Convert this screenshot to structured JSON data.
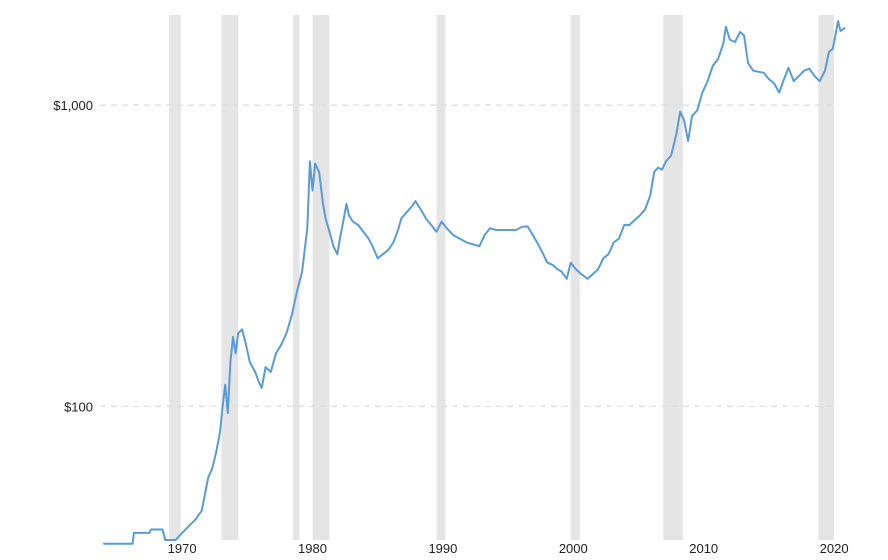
{
  "chart_data": {
    "type": "line",
    "y_scale": "log",
    "ylim": [
      36,
      2100
    ],
    "xlim": [
      1963.7,
      2020.3
    ],
    "grid": "horizontal dashed",
    "legend": "none",
    "colors": {
      "line": "#5b9bd5",
      "recession": "#e5e5e5",
      "grid": "#dddddd"
    },
    "x_ticks": [
      {
        "value": 1970,
        "label": "1970"
      },
      {
        "value": 1980,
        "label": "1980"
      },
      {
        "value": 1990,
        "label": "1990"
      },
      {
        "value": 2000,
        "label": "2000"
      },
      {
        "value": 2010,
        "label": "2010"
      },
      {
        "value": 2020,
        "label": "2020"
      }
    ],
    "y_ticks": [
      {
        "value": 100,
        "label": "$100"
      },
      {
        "value": 1000,
        "label": "$1,000"
      }
    ],
    "recessions": [
      [
        1969.0,
        1969.9
      ],
      [
        1973.0,
        1974.3
      ],
      [
        1978.5,
        1979.0
      ],
      [
        1980.0,
        1981.3
      ],
      [
        1989.5,
        1990.2
      ],
      [
        1999.8,
        2000.5
      ],
      [
        2006.9,
        2008.4
      ],
      [
        2018.8,
        2020.0
      ]
    ],
    "series": [
      {
        "values": [
          [
            1964.0,
            35
          ],
          [
            1966.0,
            35
          ],
          [
            1966.2,
            35
          ],
          [
            1966.3,
            38
          ],
          [
            1967.5,
            38
          ],
          [
            1967.6,
            39
          ],
          [
            1968.5,
            39
          ],
          [
            1968.7,
            36
          ],
          [
            1969.5,
            36
          ],
          [
            1970.0,
            38
          ],
          [
            1970.5,
            40
          ],
          [
            1971.0,
            42
          ],
          [
            1971.5,
            45
          ],
          [
            1972.0,
            58
          ],
          [
            1972.3,
            62
          ],
          [
            1972.6,
            70
          ],
          [
            1972.9,
            82
          ],
          [
            1973.1,
            100
          ],
          [
            1973.3,
            118
          ],
          [
            1973.5,
            95
          ],
          [
            1973.7,
            140
          ],
          [
            1973.9,
            170
          ],
          [
            1974.1,
            150
          ],
          [
            1974.3,
            175
          ],
          [
            1974.6,
            180
          ],
          [
            1974.9,
            160
          ],
          [
            1975.2,
            140
          ],
          [
            1975.6,
            130
          ],
          [
            1975.9,
            120
          ],
          [
            1976.1,
            115
          ],
          [
            1976.4,
            135
          ],
          [
            1976.8,
            130
          ],
          [
            1977.2,
            150
          ],
          [
            1977.6,
            160
          ],
          [
            1978.0,
            175
          ],
          [
            1978.4,
            200
          ],
          [
            1978.8,
            240
          ],
          [
            1979.2,
            280
          ],
          [
            1979.6,
            390
          ],
          [
            1979.8,
            650
          ],
          [
            1980.0,
            520
          ],
          [
            1980.2,
            640
          ],
          [
            1980.5,
            600
          ],
          [
            1980.8,
            470
          ],
          [
            1981.0,
            420
          ],
          [
            1981.3,
            380
          ],
          [
            1981.6,
            340
          ],
          [
            1981.9,
            320
          ],
          [
            1982.1,
            360
          ],
          [
            1982.4,
            420
          ],
          [
            1982.6,
            470
          ],
          [
            1982.8,
            430
          ],
          [
            1983.1,
            410
          ],
          [
            1983.5,
            400
          ],
          [
            1983.9,
            380
          ],
          [
            1984.3,
            360
          ],
          [
            1984.6,
            340
          ],
          [
            1985.0,
            310
          ],
          [
            1985.4,
            320
          ],
          [
            1985.8,
            330
          ],
          [
            1986.2,
            350
          ],
          [
            1986.6,
            390
          ],
          [
            1986.8,
            420
          ],
          [
            1987.2,
            440
          ],
          [
            1987.6,
            460
          ],
          [
            1987.9,
            480
          ],
          [
            1988.3,
            450
          ],
          [
            1988.7,
            420
          ],
          [
            1989.1,
            400
          ],
          [
            1989.5,
            380
          ],
          [
            1989.9,
            410
          ],
          [
            1990.3,
            390
          ],
          [
            1990.8,
            370
          ],
          [
            1991.3,
            360
          ],
          [
            1991.8,
            350
          ],
          [
            1992.3,
            345
          ],
          [
            1992.8,
            340
          ],
          [
            1993.2,
            370
          ],
          [
            1993.6,
            390
          ],
          [
            1994.1,
            385
          ],
          [
            1994.6,
            385
          ],
          [
            1995.1,
            385
          ],
          [
            1995.6,
            385
          ],
          [
            1996.1,
            395
          ],
          [
            1996.5,
            395
          ],
          [
            1996.9,
            370
          ],
          [
            1997.3,
            345
          ],
          [
            1997.7,
            320
          ],
          [
            1998.0,
            300
          ],
          [
            1998.4,
            295
          ],
          [
            1998.8,
            285
          ],
          [
            1999.1,
            280
          ],
          [
            1999.5,
            265
          ],
          [
            1999.8,
            300
          ],
          [
            2000.2,
            285
          ],
          [
            2000.6,
            275
          ],
          [
            2001.1,
            265
          ],
          [
            2001.5,
            275
          ],
          [
            2001.9,
            285
          ],
          [
            2002.3,
            310
          ],
          [
            2002.7,
            320
          ],
          [
            2003.1,
            350
          ],
          [
            2003.5,
            360
          ],
          [
            2003.9,
            400
          ],
          [
            2004.3,
            400
          ],
          [
            2004.7,
            415
          ],
          [
            2005.1,
            430
          ],
          [
            2005.5,
            450
          ],
          [
            2005.9,
            500
          ],
          [
            2006.2,
            600
          ],
          [
            2006.5,
            620
          ],
          [
            2006.8,
            610
          ],
          [
            2007.1,
            650
          ],
          [
            2007.5,
            680
          ],
          [
            2007.9,
            800
          ],
          [
            2008.2,
            950
          ],
          [
            2008.5,
            890
          ],
          [
            2008.8,
            760
          ],
          [
            2009.1,
            920
          ],
          [
            2009.5,
            960
          ],
          [
            2009.9,
            1100
          ],
          [
            2010.3,
            1200
          ],
          [
            2010.7,
            1350
          ],
          [
            2011.1,
            1420
          ],
          [
            2011.5,
            1600
          ],
          [
            2011.7,
            1820
          ],
          [
            2012.0,
            1650
          ],
          [
            2012.4,
            1620
          ],
          [
            2012.8,
            1750
          ],
          [
            2013.1,
            1700
          ],
          [
            2013.4,
            1380
          ],
          [
            2013.8,
            1300
          ],
          [
            2014.2,
            1290
          ],
          [
            2014.6,
            1280
          ],
          [
            2015.0,
            1220
          ],
          [
            2015.4,
            1180
          ],
          [
            2015.8,
            1100
          ],
          [
            2016.1,
            1200
          ],
          [
            2016.5,
            1330
          ],
          [
            2016.9,
            1200
          ],
          [
            2017.3,
            1250
          ],
          [
            2017.7,
            1300
          ],
          [
            2018.1,
            1320
          ],
          [
            2018.5,
            1250
          ],
          [
            2018.9,
            1200
          ],
          [
            2019.3,
            1300
          ],
          [
            2019.6,
            1500
          ],
          [
            2019.9,
            1540
          ],
          [
            2020.1,
            1700
          ],
          [
            2020.3,
            1900
          ],
          [
            2020.5,
            1760
          ],
          [
            2020.8,
            1800
          ]
        ]
      }
    ]
  }
}
